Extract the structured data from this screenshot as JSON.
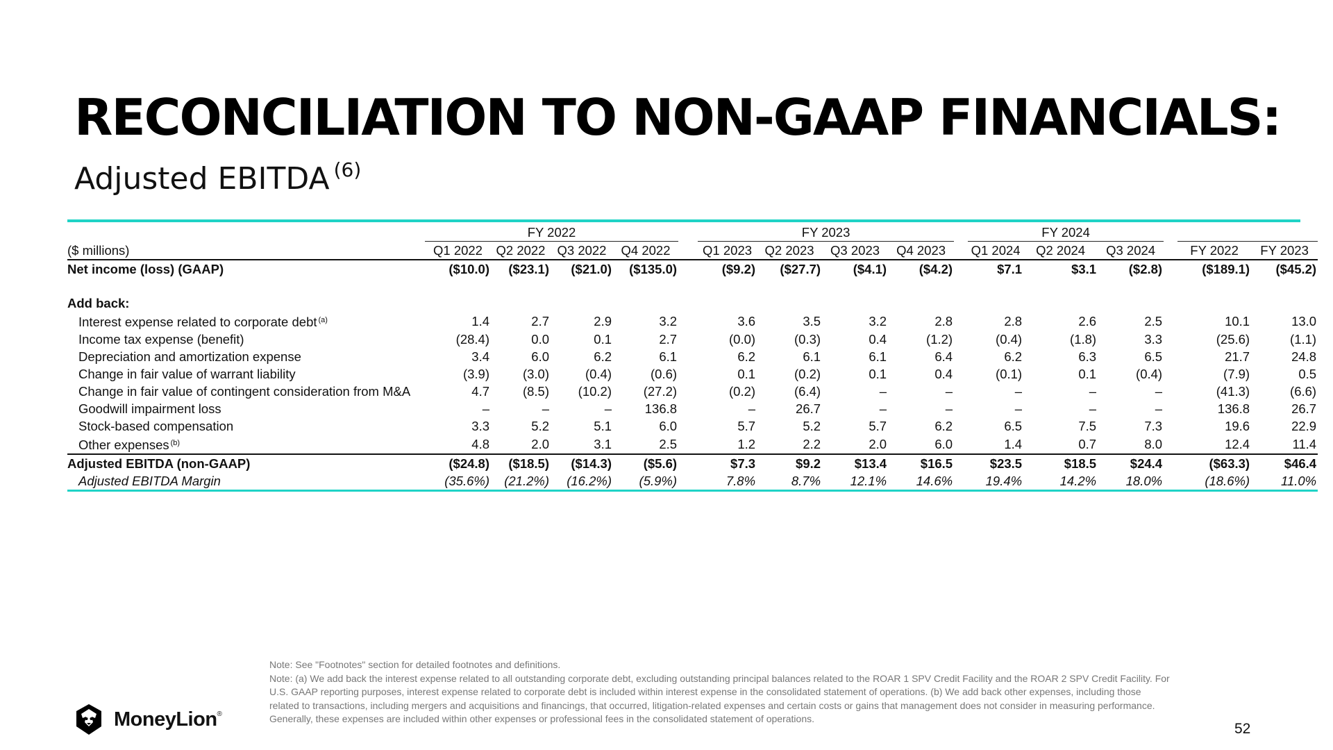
{
  "title": "RECONCILIATION TO NON-GAAP FINANCIALS:",
  "subtitle": "Adjusted EBITDA",
  "subtitle_ref": "(6)",
  "table": {
    "unit_label": "($ millions)",
    "fy_groups": [
      "FY 2022",
      "FY 2023",
      "FY 2024"
    ],
    "columns": [
      "Q1 2022",
      "Q2 2022",
      "Q3 2022",
      "Q4 2022",
      "Q1 2023",
      "Q2 2023",
      "Q3 2023",
      "Q4 2023",
      "Q1 2024",
      "Q2 2024",
      "Q3 2024",
      "FY 2022",
      "FY 2023"
    ],
    "net_income": {
      "label": "Net income (loss) (GAAP)",
      "values": [
        "($10.0)",
        "($23.1)",
        "($21.0)",
        "($135.0)",
        "($9.2)",
        "($27.7)",
        "($4.1)",
        "($4.2)",
        "$7.1",
        "$3.1",
        "($2.8)",
        "($189.1)",
        "($45.2)"
      ]
    },
    "add_back_label": "Add back:",
    "add_back_rows": [
      {
        "label": "Interest expense related to corporate debt",
        "ref": "(a)",
        "values": [
          "1.4",
          "2.7",
          "2.9",
          "3.2",
          "3.6",
          "3.5",
          "3.2",
          "2.8",
          "2.8",
          "2.6",
          "2.5",
          "10.1",
          "13.0"
        ]
      },
      {
        "label": "Income tax expense (benefit)",
        "ref": "",
        "values": [
          "(28.4)",
          "0.0",
          "0.1",
          "2.7",
          "(0.0)",
          "(0.3)",
          "0.4",
          "(1.2)",
          "(0.4)",
          "(1.8)",
          "3.3",
          "(25.6)",
          "(1.1)"
        ]
      },
      {
        "label": "Depreciation and amortization expense",
        "ref": "",
        "values": [
          "3.4",
          "6.0",
          "6.2",
          "6.1",
          "6.2",
          "6.1",
          "6.1",
          "6.4",
          "6.2",
          "6.3",
          "6.5",
          "21.7",
          "24.8"
        ]
      },
      {
        "label": "Change in fair value of warrant liability",
        "ref": "",
        "values": [
          "(3.9)",
          "(3.0)",
          "(0.4)",
          "(0.6)",
          "0.1",
          "(0.2)",
          "0.1",
          "0.4",
          "(0.1)",
          "0.1",
          "(0.4)",
          "(7.9)",
          "0.5"
        ]
      },
      {
        "label": "Change in fair value of contingent consideration from M&A",
        "ref": "",
        "values": [
          "4.7",
          "(8.5)",
          "(10.2)",
          "(27.2)",
          "(0.2)",
          "(6.4)",
          "–",
          "–",
          "–",
          "–",
          "–",
          "(41.3)",
          "(6.6)"
        ]
      },
      {
        "label": "Goodwill impairment loss",
        "ref": "",
        "values": [
          "–",
          "–",
          "–",
          "136.8",
          "–",
          "26.7",
          "–",
          "–",
          "–",
          "–",
          "–",
          "136.8",
          "26.7"
        ]
      },
      {
        "label": "Stock-based compensation",
        "ref": "",
        "values": [
          "3.3",
          "5.2",
          "5.1",
          "6.0",
          "5.7",
          "5.2",
          "5.7",
          "6.2",
          "6.5",
          "7.5",
          "7.3",
          "19.6",
          "22.9"
        ]
      },
      {
        "label": "Other expenses",
        "ref": "(b)",
        "values": [
          "4.8",
          "2.0",
          "3.1",
          "2.5",
          "1.2",
          "2.2",
          "2.0",
          "6.0",
          "1.4",
          "0.7",
          "8.0",
          "12.4",
          "11.4"
        ]
      }
    ],
    "adjusted_ebitda": {
      "label": "Adjusted EBITDA (non-GAAP)",
      "values": [
        "($24.8)",
        "($18.5)",
        "($14.3)",
        "($5.6)",
        "$7.3",
        "$9.2",
        "$13.4",
        "$16.5",
        "$23.5",
        "$18.5",
        "$24.4",
        "($63.3)",
        "$46.4"
      ]
    },
    "margin": {
      "label": "Adjusted EBITDA Margin",
      "values": [
        "(35.6%)",
        "(21.2%)",
        "(16.2%)",
        "(5.9%)",
        "7.8%",
        "8.7%",
        "12.1%",
        "14.6%",
        "19.4%",
        "14.2%",
        "18.0%",
        "(18.6%)",
        "11.0%"
      ]
    }
  },
  "notes": {
    "line1": "Note: See \"Footnotes\" section for detailed footnotes and definitions.",
    "line2": "Note: (a) We add back the interest expense related to all outstanding corporate debt, excluding outstanding principal balances related to the ROAR 1 SPV Credit Facility and the ROAR 2 SPV Credit Facility. For U.S. GAAP reporting purposes, interest expense related to corporate debt is included within interest expense in the consolidated statement of operations. (b) We add back other expenses, including those related to transactions, including mergers and acquisitions and financings, that occurred, litigation-related expenses and certain costs or gains that management does not consider in measuring performance. Generally, these expenses are included within other expenses or professional fees in the consolidated statement of operations."
  },
  "logo": {
    "name": "MoneyLion",
    "mark": "®"
  },
  "page_number": "52",
  "colors": {
    "accent": "#1fd3c6",
    "text": "#111111",
    "note": "#777777"
  }
}
